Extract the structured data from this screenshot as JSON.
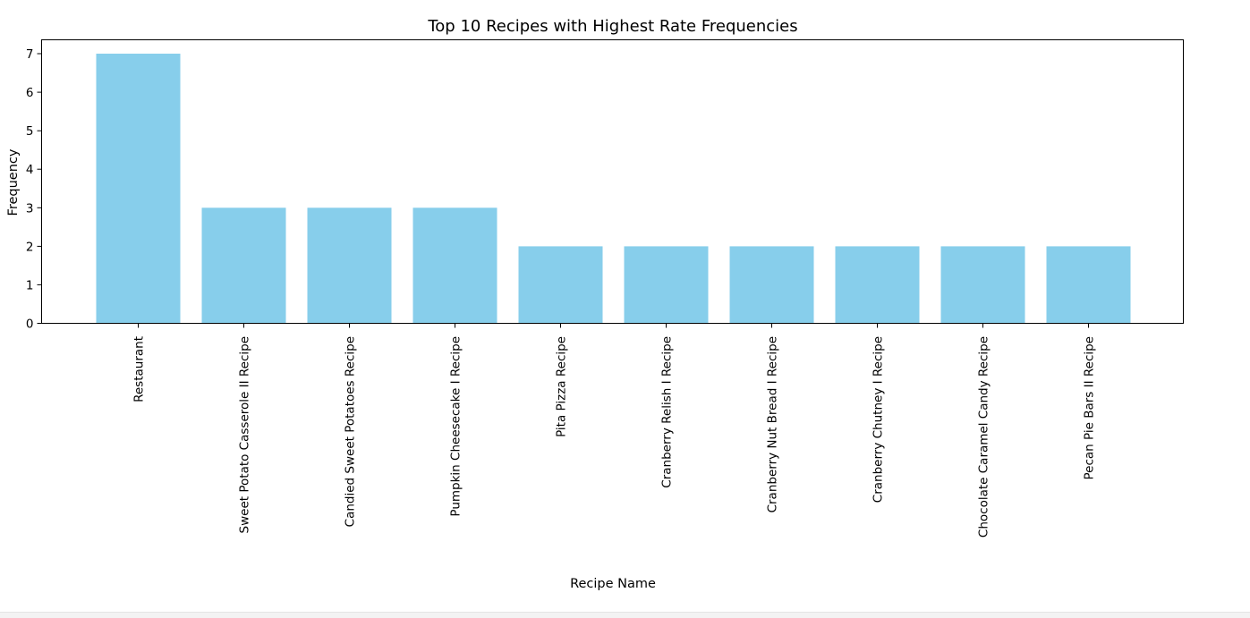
{
  "chart_data": {
    "type": "bar",
    "title": "Top 10 Recipes with Highest Rate Frequencies",
    "xlabel": "Recipe Name",
    "ylabel": "Frequency",
    "categories": [
      "Restaurant",
      "Sweet Potato Casserole II Recipe",
      "Candied Sweet Potatoes Recipe",
      "Pumpkin Cheesecake I Recipe",
      "Pita Pizza Recipe",
      "Cranberry Relish I Recipe",
      "Cranberry Nut Bread I Recipe",
      "Cranberry Chutney I Recipe",
      "Chocolate Caramel Candy Recipe",
      "Pecan Pie Bars II Recipe"
    ],
    "values": [
      7,
      3,
      3,
      3,
      2,
      2,
      2,
      2,
      2,
      2
    ],
    "yticks": [
      0,
      1,
      2,
      3,
      4,
      5,
      6,
      7
    ],
    "ylim": [
      0,
      7.35
    ],
    "grid": false,
    "bar_color": "#87ceeb"
  }
}
